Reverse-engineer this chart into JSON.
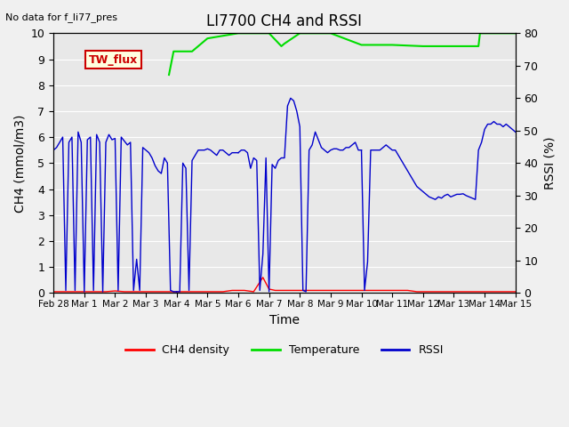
{
  "title": "LI7700 CH4 and RSSI",
  "xlabel": "Time",
  "ylabel_left": "CH4 (mmol/m3)",
  "ylabel_right": "RSSI (%)",
  "ylim_left": [
    0,
    10.0
  ],
  "ylim_right": [
    0,
    80
  ],
  "yticks_left": [
    0,
    1.0,
    2.0,
    3.0,
    4.0,
    5.0,
    6.0,
    7.0,
    8.0,
    9.0,
    10.0
  ],
  "yticks_right": [
    0,
    10,
    20,
    30,
    40,
    50,
    60,
    70,
    80
  ],
  "annotation_topleft": "No data for f_li77_pres",
  "box_label": "TW_flux",
  "legend_entries": [
    "CH4 density",
    "Temperature",
    "RSSI"
  ],
  "legend_colors": [
    "#ff0000",
    "#00cc00",
    "#0000ff"
  ],
  "bg_color": "#e8e8e8",
  "xstart_day": -1,
  "xend_day": 16,
  "xtick_labels": [
    "Feb 28",
    "Mar 1",
    "Mar 2",
    "Mar 3",
    "Mar 4",
    "Mar 5",
    "Mar 6",
    "Mar 7",
    "Mar 8",
    "Mar 9",
    "Mar 10",
    "Mar 11",
    "Mar 12",
    "Mar 13",
    "Mar 14",
    "Mar 15"
  ],
  "xtick_days": [
    -1,
    0,
    1,
    2,
    3,
    4,
    5,
    6,
    7,
    8,
    9,
    10,
    11,
    12,
    13,
    14
  ],
  "red_x": [
    -1,
    -0.8,
    -0.5,
    0,
    0.2,
    0.5,
    0.7,
    1.0,
    1.3,
    1.5,
    1.8,
    2.0,
    2.3,
    2.5,
    2.8,
    3.0,
    3.2,
    3.5,
    3.8,
    4.0,
    4.3,
    4.5,
    4.8,
    5.0,
    5.2,
    5.5,
    5.8,
    6.0,
    6.2,
    6.5,
    6.8,
    7.0,
    7.3,
    7.5,
    7.8,
    8.0,
    8.3,
    8.5,
    8.8,
    9.0,
    9.3,
    9.5,
    9.8,
    10.0,
    10.3,
    10.5,
    10.8,
    11.0,
    11.5,
    12.0,
    12.5,
    13.0,
    13.5,
    14.0
  ],
  "red_y": [
    0.05,
    0.05,
    0.05,
    0.05,
    0.05,
    0.05,
    0.05,
    0.08,
    0.05,
    0.05,
    0.05,
    0.05,
    0.05,
    0.05,
    0.05,
    0.05,
    0.05,
    0.05,
    0.05,
    0.05,
    0.05,
    0.05,
    0.1,
    0.1,
    0.1,
    0.05,
    0.6,
    0.15,
    0.1,
    0.1,
    0.1,
    0.1,
    0.1,
    0.1,
    0.1,
    0.1,
    0.1,
    0.1,
    0.1,
    0.1,
    0.1,
    0.1,
    0.1,
    0.1,
    0.1,
    0.1,
    0.05,
    0.05,
    0.05,
    0.05,
    0.05,
    0.05,
    0.05,
    0.05
  ],
  "green_x": [
    -1,
    2.7,
    2.75,
    2.9,
    3.0,
    3.5,
    4.0,
    5.0,
    6.0,
    6.4,
    6.5,
    7.0,
    8.0,
    9.0,
    9.5,
    9.55,
    10.0,
    11.0,
    12.0,
    12.8,
    12.85,
    13.0,
    13.5,
    14.0
  ],
  "green_y": [
    null,
    null,
    8.4,
    9.3,
    9.3,
    9.3,
    9.8,
    10.0,
    10.0,
    9.5,
    9.6,
    10.0,
    10.0,
    9.55,
    9.55,
    9.55,
    9.55,
    9.5,
    9.5,
    9.5,
    10.0,
    10.0,
    10.0,
    10.0
  ],
  "blue_x_segments": [
    {
      "x": [
        -1,
        -0.9,
        -0.8,
        -0.7,
        -0.6,
        -0.5,
        -0.4,
        -0.3,
        -0.2,
        -0.1,
        0,
        0.1,
        0.2,
        0.3,
        0.4,
        0.5,
        0.6,
        0.7,
        0.8,
        0.9,
        1.0,
        1.1,
        1.2,
        1.3,
        1.4,
        1.5,
        1.6,
        1.7,
        1.8,
        1.9,
        2.0,
        2.1,
        2.2,
        2.3,
        2.4,
        2.5,
        2.6,
        2.7,
        2.8,
        2.9,
        3.0
      ],
      "y": [
        5.5,
        5.6,
        5.8,
        6.0,
        0.1,
        5.8,
        6.0,
        0.1,
        6.2,
        5.8,
        0.05,
        5.9,
        6.0,
        0.1,
        6.1,
        5.8,
        0.05,
        5.8,
        6.1,
        5.9,
        5.95,
        0.1,
        6.0,
        5.85,
        5.7,
        5.8,
        0.1,
        1.3,
        0.1,
        5.6,
        5.5,
        5.4,
        5.2,
        4.9,
        4.7,
        4.6,
        5.2,
        5.0,
        0.1,
        0.05,
        0.05
      ]
    },
    {
      "x": [
        3.0,
        3.1,
        3.2,
        3.3,
        3.4,
        3.5,
        3.6,
        3.7,
        3.8,
        3.9,
        4.0,
        4.1,
        4.2,
        4.3,
        4.4,
        4.5,
        4.6,
        4.7,
        4.8,
        4.9,
        5.0
      ],
      "y": [
        0.05,
        0.05,
        5.0,
        4.8,
        0.1,
        5.1,
        5.3,
        5.5,
        5.5,
        5.5,
        5.55,
        5.5,
        5.4,
        5.3,
        5.5,
        5.5,
        5.4,
        5.3,
        5.4,
        5.4,
        5.4
      ]
    },
    {
      "x": [
        5.0,
        5.1,
        5.2,
        5.3,
        5.4,
        5.5,
        5.6,
        5.7,
        5.8,
        5.9,
        6.0,
        6.1,
        6.2,
        6.3,
        6.4,
        6.5,
        6.6,
        6.7,
        6.8,
        6.9,
        7.0,
        7.1,
        7.2,
        7.3,
        7.4,
        7.5,
        7.6,
        7.7,
        7.8,
        7.9,
        8.0,
        8.1,
        8.2,
        8.3,
        8.4,
        8.5,
        8.6,
        8.7,
        8.8,
        8.9,
        9.0
      ],
      "y": [
        5.4,
        5.5,
        5.5,
        5.4,
        4.8,
        5.2,
        5.1,
        0.1,
        1.5,
        5.2,
        0.05,
        4.95,
        4.8,
        5.1,
        5.2,
        5.2,
        7.2,
        7.5,
        7.4,
        7.0,
        6.4,
        0.1,
        0.05,
        5.5,
        5.7,
        6.2,
        5.9,
        5.6,
        5.5,
        5.4,
        5.5,
        5.55,
        5.55,
        5.5,
        5.5,
        5.6,
        5.6,
        5.7,
        5.8,
        5.5,
        5.5
      ]
    },
    {
      "x": [
        9.0,
        9.1,
        9.2,
        9.3,
        9.4,
        9.5,
        9.6,
        9.7,
        9.8,
        9.9,
        10.0,
        10.1,
        10.2,
        10.3,
        10.4,
        10.5,
        10.6,
        10.7,
        10.8,
        10.9,
        11.0,
        11.1,
        11.2,
        11.3,
        11.4,
        11.5,
        11.6,
        11.7,
        11.8,
        11.9,
        12.0,
        12.1,
        12.2,
        12.3,
        12.4,
        12.5,
        12.6,
        12.7,
        12.8,
        12.9,
        13.0,
        13.1,
        13.2,
        13.3,
        13.4,
        13.5,
        13.6,
        13.7,
        13.8,
        13.9,
        14.0
      ],
      "y": [
        5.5,
        0.1,
        1.2,
        5.5,
        5.5,
        5.5,
        5.5,
        5.6,
        5.7,
        5.6,
        5.5,
        5.5,
        5.3,
        5.1,
        4.9,
        4.7,
        4.5,
        4.3,
        4.1,
        4.0,
        3.9,
        3.8,
        3.7,
        3.65,
        3.6,
        3.7,
        3.65,
        3.75,
        3.8,
        3.7,
        3.75,
        3.8,
        3.8,
        3.82,
        3.75,
        3.7,
        3.65,
        3.6,
        5.5,
        5.8,
        6.3,
        6.5,
        6.5,
        6.6,
        6.5,
        6.5,
        6.4,
        6.5,
        6.4,
        6.3,
        6.2
      ]
    }
  ]
}
